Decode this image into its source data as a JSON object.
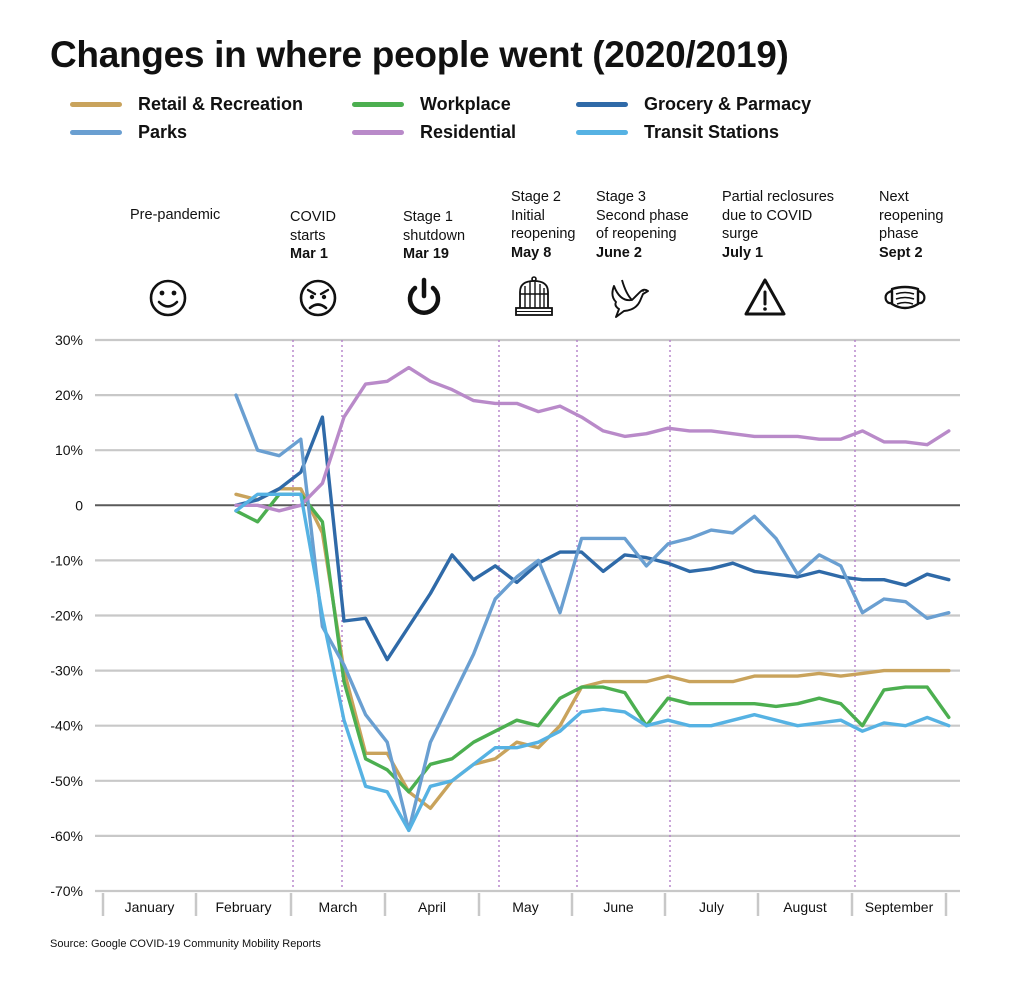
{
  "title": "Changes in where people went (2020/2019)",
  "source": "Source: Google COVID-19 Community Mobility Reports",
  "legend": [
    {
      "label": "Retail & Recreation",
      "color": "#c9a35c"
    },
    {
      "label": "Workplace",
      "color": "#4caf50"
    },
    {
      "label": "Grocery & Parmacy",
      "color": "#2f6aa8"
    },
    {
      "label": "Parks",
      "color": "#6a9fd1"
    },
    {
      "label": "Residential",
      "color": "#b98ac9"
    },
    {
      "label": "Transit Stations",
      "color": "#56b2e3"
    }
  ],
  "stages": [
    {
      "lines": [
        "Pre-pandemic"
      ],
      "date": "",
      "icon": "smile-icon"
    },
    {
      "lines": [
        "COVID",
        "starts"
      ],
      "date": "Mar 1",
      "icon": "angry-face-icon"
    },
    {
      "lines": [
        "Stage 1",
        "shutdown"
      ],
      "date": "Mar 19",
      "icon": "power-icon"
    },
    {
      "lines": [
        "Stage 2",
        "Initial",
        "reopening"
      ],
      "date": "May 8",
      "icon": "birdcage-icon"
    },
    {
      "lines": [
        "Stage 3",
        "Second phase",
        "of reopening"
      ],
      "date": "June 2",
      "icon": "dove-icon"
    },
    {
      "lines": [
        "Partial reclosures",
        "due to COVID",
        "surge"
      ],
      "date": "July 1",
      "icon": "warning-icon"
    },
    {
      "lines": [
        "Next",
        "reopening",
        "phase"
      ],
      "date": "Sept 2",
      "icon": "face-mask-icon"
    }
  ],
  "chart_data": {
    "type": "line",
    "title": "Changes in where people went (2020/2019)",
    "xlabel": "",
    "ylabel": "",
    "ylim": [
      -70,
      30
    ],
    "yticks": [
      "30%",
      "20%",
      "10%",
      "0",
      "-10%",
      "-20%",
      "-30%",
      "-40%",
      "-50%",
      "-60%",
      "-70%"
    ],
    "categories": [
      "January",
      "February",
      "March",
      "April",
      "May",
      "June",
      "July",
      "August",
      "September"
    ],
    "event_markers": [
      "Mar 1",
      "Mar 19",
      "May 8",
      "June 2",
      "July 1",
      "Sept 2"
    ],
    "grid": true,
    "x_unit": "week index from start of February",
    "series": [
      {
        "name": "Retail & Recreation",
        "color": "#c9a35c",
        "x": [
          0,
          1,
          2,
          3,
          4,
          5,
          6,
          7,
          8,
          9,
          10,
          11,
          12,
          13,
          14,
          15,
          16,
          17,
          18,
          19,
          20,
          21,
          22,
          23,
          24,
          25,
          26,
          27,
          28,
          29,
          30,
          31,
          32,
          33
        ],
        "y": [
          2,
          1,
          3,
          3,
          -5,
          -30,
          -45,
          -45,
          -52,
          -55,
          -50,
          -47,
          -46,
          -43,
          -44,
          -40,
          -33,
          -32,
          -32,
          -32,
          -31,
          -32,
          -32,
          -32,
          -31,
          -31,
          -31,
          -30.5,
          -31,
          -30.5,
          -30,
          -30,
          -30,
          -30
        ]
      },
      {
        "name": "Workplace",
        "color": "#4caf50",
        "x": [
          0,
          1,
          2,
          3,
          4,
          5,
          6,
          7,
          8,
          9,
          10,
          11,
          12,
          13,
          14,
          15,
          16,
          17,
          18,
          19,
          20,
          21,
          22,
          23,
          24,
          25,
          26,
          27,
          28,
          29,
          30,
          31,
          32,
          33
        ],
        "y": [
          -1,
          -3,
          2,
          2,
          -3,
          -32,
          -46,
          -48,
          -52,
          -47,
          -46,
          -43,
          -41,
          -39,
          -40,
          -35,
          -33,
          -33,
          -34,
          -40,
          -35,
          -36,
          -36,
          -36,
          -36,
          -36.5,
          -36,
          -35,
          -36,
          -40,
          -33.5,
          -33,
          -33,
          -38.5
        ]
      },
      {
        "name": "Grocery & Parmacy",
        "color": "#2f6aa8",
        "x": [
          0,
          1,
          2,
          3,
          4,
          5,
          6,
          7,
          8,
          9,
          10,
          11,
          12,
          13,
          14,
          15,
          16,
          17,
          18,
          19,
          20,
          21,
          22,
          23,
          24,
          25,
          26,
          27,
          28,
          29,
          30,
          31,
          32,
          33
        ],
        "y": [
          0,
          1,
          3,
          6,
          16,
          -21,
          -20.5,
          -28,
          -22,
          -16,
          -9,
          -13.5,
          -11,
          -14,
          -10.5,
          -8.5,
          -8.5,
          -12,
          -9,
          -9.5,
          -10.5,
          -12,
          -11.5,
          -10.5,
          -12,
          -12.5,
          -13,
          -12,
          -13,
          -13.5,
          -13.5,
          -14.5,
          -12.5,
          -13.5
        ]
      },
      {
        "name": "Parks",
        "color": "#6a9fd1",
        "x": [
          0,
          1,
          2,
          3,
          4,
          5,
          6,
          7,
          8,
          9,
          10,
          11,
          12,
          13,
          14,
          15,
          16,
          17,
          18,
          19,
          20,
          21,
          22,
          23,
          24,
          25,
          26,
          27,
          28,
          29,
          30,
          31,
          32,
          33
        ],
        "y": [
          20,
          10,
          9,
          12,
          -22,
          -29,
          -38,
          -43,
          -59,
          -43,
          -35,
          -27,
          -17,
          -13,
          -10,
          -19.5,
          -6,
          -6,
          -6,
          -11,
          -7,
          -6,
          -4.5,
          -5,
          -2,
          -6,
          -12.5,
          -9,
          -11,
          -19.5,
          -17,
          -17.5,
          -20.5,
          -19.5
        ]
      },
      {
        "name": "Residential",
        "color": "#b98ac9",
        "x": [
          0,
          1,
          2,
          3,
          4,
          5,
          6,
          7,
          8,
          9,
          10,
          11,
          12,
          13,
          14,
          15,
          16,
          17,
          18,
          19,
          20,
          21,
          22,
          23,
          24,
          25,
          26,
          27,
          28,
          29,
          30,
          31,
          32,
          33
        ],
        "y": [
          0,
          0,
          -1,
          0,
          4,
          16,
          22,
          22.5,
          25,
          22.5,
          21,
          19,
          18.5,
          18.5,
          17,
          18,
          16,
          13.5,
          12.5,
          13,
          14,
          13.5,
          13.5,
          13,
          12.5,
          12.5,
          12.5,
          12,
          12,
          13.5,
          11.5,
          11.5,
          11,
          13.5
        ]
      },
      {
        "name": "Transit Stations",
        "color": "#56b2e3",
        "x": [
          0,
          1,
          2,
          3,
          4,
          5,
          6,
          7,
          8,
          9,
          10,
          11,
          12,
          13,
          14,
          15,
          16,
          17,
          18,
          19,
          20,
          21,
          22,
          23,
          24,
          25,
          26,
          27,
          28,
          29,
          30,
          31,
          32,
          33
        ],
        "y": [
          -1,
          2,
          2,
          2,
          -20,
          -39,
          -51,
          -52,
          -59,
          -51,
          -50,
          -47,
          -44,
          -44,
          -43,
          -41,
          -37.5,
          -37,
          -37.5,
          -40,
          -39,
          -40,
          -40,
          -39,
          -38,
          -39,
          -40,
          -39.5,
          -39,
          -41,
          -39.5,
          -40,
          -38.5,
          -40
        ]
      }
    ]
  }
}
